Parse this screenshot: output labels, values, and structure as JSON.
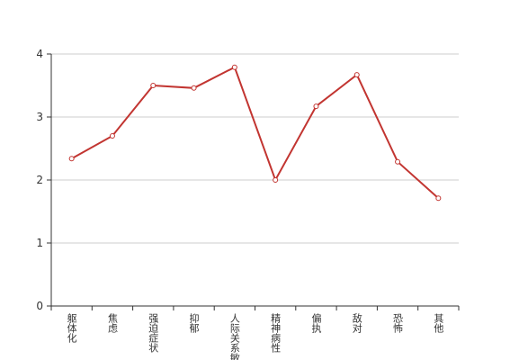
{
  "chart_data": {
    "type": "line",
    "categories": [
      "躯体化",
      "焦虑",
      "强迫症状",
      "抑郁",
      "人际关系敏感",
      "精神病性",
      "偏执",
      "敌对",
      "恐怖",
      "其他"
    ],
    "values": [
      2.34,
      2.7,
      3.5,
      3.46,
      3.79,
      2.0,
      3.17,
      3.67,
      2.29,
      1.71
    ],
    "color": "#c23531",
    "ylim": [
      0,
      4
    ],
    "yticks": [
      0,
      1,
      2,
      3,
      4
    ],
    "grid": true
  }
}
